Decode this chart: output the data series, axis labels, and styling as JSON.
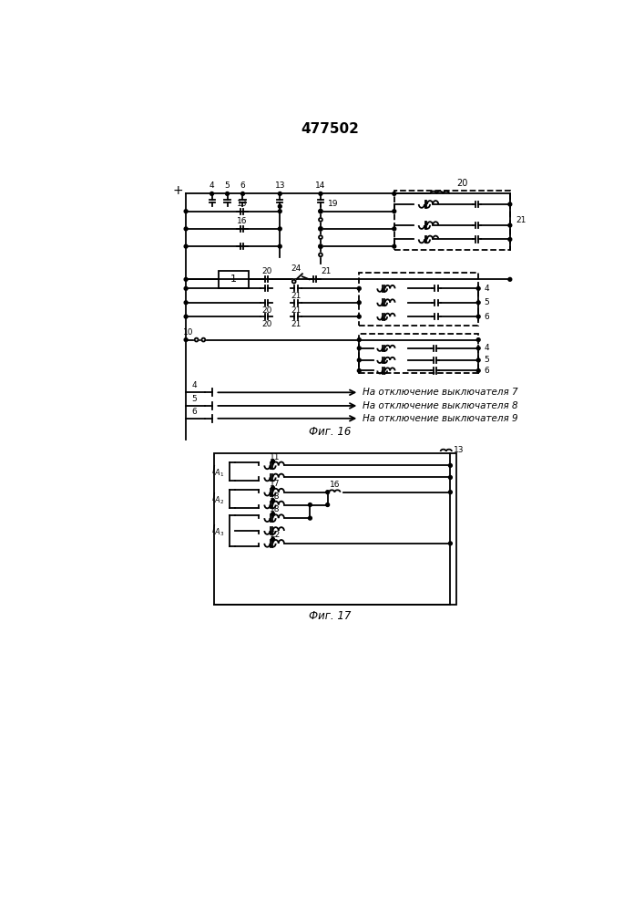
{
  "title": "477502",
  "title_fontsize": 11,
  "fig16_caption": "Фиг. 16",
  "fig17_caption": "Фиг. 17",
  "bg_color": "#ffffff",
  "line_color": "#000000",
  "line_width": 1.3,
  "output_texts": [
    "На отключение выключателя 7",
    "На отключение выключателя 8",
    "На отключение выключателя 9"
  ]
}
